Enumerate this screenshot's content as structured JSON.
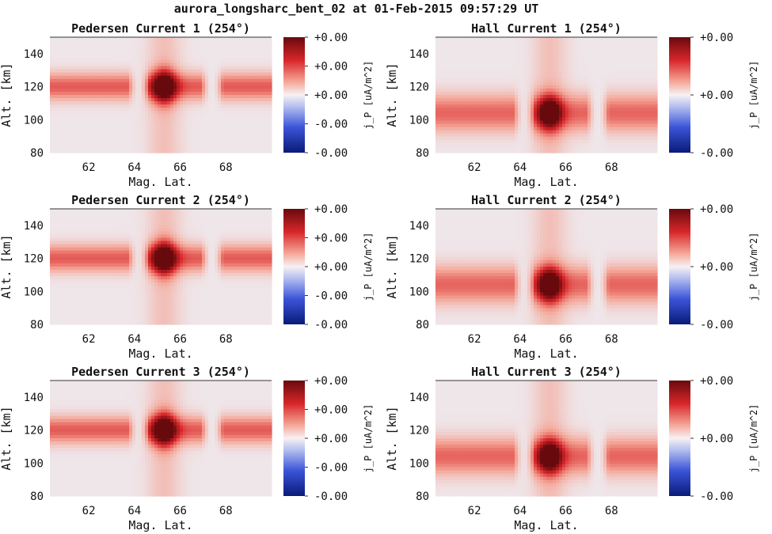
{
  "figure": {
    "suptitle": "aurora_longsharc_bent_02 at 01-Feb-2015 09:57:29 UT"
  },
  "chart_data": [
    {
      "type": "heatmap",
      "title": "Pedersen Current 1 (254°)",
      "xlabel": "Mag. Lat.",
      "ylabel": "Alt. [km]",
      "xlim": [
        60.3,
        70.0
      ],
      "ylim": [
        80,
        150
      ],
      "xticks": [
        "62",
        "64",
        "66",
        "68"
      ],
      "yticks": [
        "80",
        "100",
        "120",
        "140"
      ],
      "colorbar": {
        "label": "j_P [uA/m^2]",
        "ticks": [
          "+0.00",
          "+0.00",
          "+0.00",
          "-0.00",
          "-0.00"
        ],
        "cmap": "seismic"
      },
      "field": {
        "band_center_alt": 120,
        "band_width_km": 8,
        "band_level": 0.45,
        "gap_lats": [
          [
            63.8,
            64.6
          ],
          [
            67.0,
            67.8
          ]
        ],
        "blob_lat": 65.3,
        "blob_alt": 120,
        "blob_level": 1.0
      }
    },
    {
      "type": "heatmap",
      "title": "Hall Current 1 (254°)",
      "xlabel": "Mag. Lat.",
      "ylabel": "Alt. [km]",
      "xlim": [
        60.3,
        70.0
      ],
      "ylim": [
        80,
        150
      ],
      "xticks": [
        "62",
        "64",
        "66",
        "68"
      ],
      "yticks": [
        "80",
        "100",
        "120",
        "140"
      ],
      "colorbar": {
        "label": "j_P [uA/m^2]",
        "ticks": [
          "+0.00",
          "+0.00",
          "-0.00"
        ],
        "cmap": "seismic"
      },
      "field": {
        "band_center_alt": 104,
        "band_width_km": 11,
        "band_level": 0.42,
        "gap_lats": [
          [
            63.8,
            64.6
          ],
          [
            67.0,
            67.8
          ]
        ],
        "blob_lat": 65.3,
        "blob_alt": 104,
        "blob_level": 1.0
      }
    },
    {
      "type": "heatmap",
      "title": "Pedersen Current 2 (254°)",
      "xlabel": "Mag. Lat.",
      "ylabel": "Alt. [km]",
      "xlim": [
        60.3,
        70.0
      ],
      "ylim": [
        80,
        150
      ],
      "xticks": [
        "62",
        "64",
        "66",
        "68"
      ],
      "yticks": [
        "80",
        "100",
        "120",
        "140"
      ],
      "colorbar": {
        "label": "j_P [uA/m^2]",
        "ticks": [
          "+0.00",
          "+0.00",
          "+0.00",
          "-0.00",
          "-0.00"
        ],
        "cmap": "seismic"
      },
      "field": {
        "band_center_alt": 120,
        "band_width_km": 8,
        "band_level": 0.45,
        "gap_lats": [
          [
            63.8,
            64.6
          ],
          [
            67.0,
            67.8
          ]
        ],
        "blob_lat": 65.3,
        "blob_alt": 120,
        "blob_level": 1.0
      }
    },
    {
      "type": "heatmap",
      "title": "Hall Current 2 (254°)",
      "xlabel": "Mag. Lat.",
      "ylabel": "Alt. [km]",
      "xlim": [
        60.3,
        70.0
      ],
      "ylim": [
        80,
        150
      ],
      "xticks": [
        "62",
        "64",
        "66",
        "68"
      ],
      "yticks": [
        "80",
        "100",
        "120",
        "140"
      ],
      "colorbar": {
        "label": "j_P [uA/m^2]",
        "ticks": [
          "+0.00",
          "+0.00",
          "-0.00"
        ],
        "cmap": "seismic"
      },
      "field": {
        "band_center_alt": 104,
        "band_width_km": 11,
        "band_level": 0.42,
        "gap_lats": [
          [
            63.8,
            64.6
          ],
          [
            67.0,
            67.8
          ]
        ],
        "blob_lat": 65.3,
        "blob_alt": 104,
        "blob_level": 1.0
      }
    },
    {
      "type": "heatmap",
      "title": "Pedersen Current 3 (254°)",
      "xlabel": "Mag. Lat.",
      "ylabel": "Alt. [km]",
      "xlim": [
        60.3,
        70.0
      ],
      "ylim": [
        80,
        150
      ],
      "xticks": [
        "62",
        "64",
        "66",
        "68"
      ],
      "yticks": [
        "80",
        "100",
        "120",
        "140"
      ],
      "colorbar": {
        "label": "j_P [uA/m^2]",
        "ticks": [
          "+0.00",
          "+0.00",
          "+0.00",
          "-0.00",
          "-0.00"
        ],
        "cmap": "seismic"
      },
      "field": {
        "band_center_alt": 120,
        "band_width_km": 8,
        "band_level": 0.45,
        "gap_lats": [
          [
            63.8,
            64.6
          ],
          [
            67.0,
            67.8
          ]
        ],
        "blob_lat": 65.3,
        "blob_alt": 120,
        "blob_level": 1.0
      }
    },
    {
      "type": "heatmap",
      "title": "Hall Current 3 (254°)",
      "xlabel": "Mag. Lat.",
      "ylabel": "Alt. [km]",
      "xlim": [
        60.3,
        70.0
      ],
      "ylim": [
        80,
        150
      ],
      "xticks": [
        "62",
        "64",
        "66",
        "68"
      ],
      "yticks": [
        "80",
        "100",
        "120",
        "140"
      ],
      "colorbar": {
        "label": "j_P [uA/m^2]",
        "ticks": [
          "+0.00",
          "+0.00",
          "-0.00"
        ],
        "cmap": "seismic"
      },
      "field": {
        "band_center_alt": 104,
        "band_width_km": 11,
        "band_level": 0.42,
        "gap_lats": [
          [
            63.8,
            64.6
          ],
          [
            67.0,
            67.8
          ]
        ],
        "blob_lat": 65.3,
        "blob_alt": 104,
        "blob_level": 1.0
      }
    }
  ]
}
